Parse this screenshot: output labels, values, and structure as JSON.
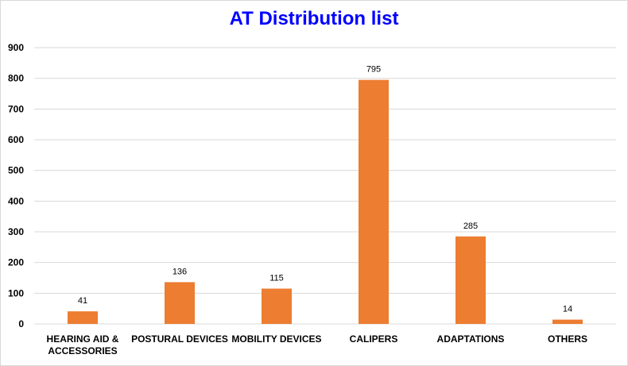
{
  "chart_data": {
    "type": "bar",
    "title": "AT Distribution list",
    "categories": [
      [
        "HEARING AID &",
        "ACCESSORIES"
      ],
      [
        "POSTURAL DEVICES"
      ],
      [
        "MOBILITY DEVICES"
      ],
      [
        "CALIPERS"
      ],
      [
        "ADAPTATIONS"
      ],
      [
        "OTHERS"
      ]
    ],
    "values": [
      41,
      136,
      115,
      795,
      285,
      14
    ],
    "ylim": [
      0,
      900
    ],
    "yticks": [
      "0",
      "100",
      "200",
      "300",
      "400",
      "500",
      "600",
      "700",
      "800",
      "900"
    ],
    "xlabel": "",
    "ylabel": "",
    "grid": true,
    "legend": "none",
    "colors": {
      "bar": "#ed7d31",
      "title": "#0000ff",
      "grid": "#d9d9d9",
      "axis": "#d9d9d9"
    }
  }
}
